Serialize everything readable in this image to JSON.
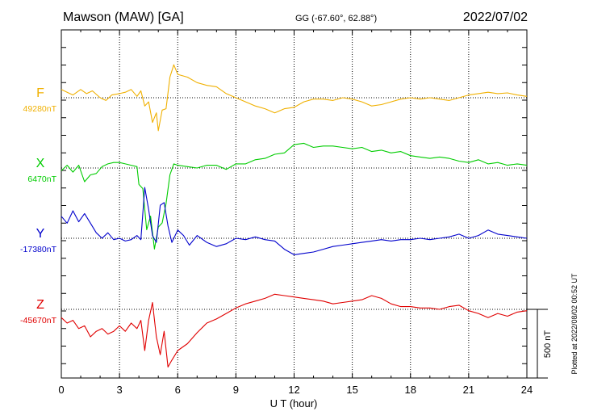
{
  "header": {
    "station": "Mawson (MAW)  [GA]",
    "coords": "GG (-67.60°,  62.88°)",
    "date": "2022/07/02"
  },
  "footer": {
    "plotted": "Plotted at 2022/08/02 00:52 UT"
  },
  "scale": {
    "label": "500 nT"
  },
  "chart_data": {
    "type": "line",
    "xlabel": "U T (hour)",
    "xlim": [
      0,
      24
    ],
    "x_ticks": [
      "0",
      "3",
      "6",
      "9",
      "12",
      "15",
      "18",
      "21",
      "24"
    ],
    "scale_bar_nT": 500,
    "series": [
      {
        "name": "F",
        "baseline_label": "49280nT",
        "color": "#f0b000",
        "points": [
          [
            0,
            60
          ],
          [
            0.3,
            40
          ],
          [
            0.6,
            20
          ],
          [
            1.0,
            60
          ],
          [
            1.3,
            30
          ],
          [
            1.6,
            50
          ],
          [
            2.0,
            0
          ],
          [
            2.3,
            -20
          ],
          [
            2.6,
            20
          ],
          [
            3.0,
            30
          ],
          [
            3.3,
            40
          ],
          [
            3.6,
            60
          ],
          [
            3.9,
            10
          ],
          [
            4.1,
            50
          ],
          [
            4.3,
            -60
          ],
          [
            4.5,
            -30
          ],
          [
            4.7,
            -180
          ],
          [
            4.9,
            -110
          ],
          [
            5.0,
            -240
          ],
          [
            5.2,
            -90
          ],
          [
            5.4,
            -80
          ],
          [
            5.6,
            150
          ],
          [
            5.8,
            240
          ],
          [
            6.0,
            170
          ],
          [
            6.5,
            150
          ],
          [
            7.0,
            110
          ],
          [
            7.5,
            90
          ],
          [
            8.0,
            80
          ],
          [
            8.5,
            30
          ],
          [
            9.0,
            0
          ],
          [
            9.5,
            -30
          ],
          [
            10.0,
            -60
          ],
          [
            10.5,
            -80
          ],
          [
            11.0,
            -110
          ],
          [
            11.5,
            -80
          ],
          [
            12.0,
            -70
          ],
          [
            12.5,
            -30
          ],
          [
            13.0,
            -10
          ],
          [
            13.5,
            -10
          ],
          [
            14.0,
            -20
          ],
          [
            14.5,
            0
          ],
          [
            15.0,
            -10
          ],
          [
            15.5,
            -30
          ],
          [
            16.0,
            -60
          ],
          [
            16.5,
            -50
          ],
          [
            17.0,
            -30
          ],
          [
            17.5,
            -10
          ],
          [
            18.0,
            0
          ],
          [
            18.5,
            -10
          ],
          [
            19.0,
            0
          ],
          [
            19.5,
            -10
          ],
          [
            20.0,
            -20
          ],
          [
            20.5,
            0
          ],
          [
            21.0,
            20
          ],
          [
            21.5,
            30
          ],
          [
            22.0,
            40
          ],
          [
            22.5,
            30
          ],
          [
            23.0,
            35
          ],
          [
            23.5,
            20
          ],
          [
            24.0,
            10
          ]
        ]
      },
      {
        "name": "X",
        "baseline_label": "6470nT",
        "color": "#00cc00",
        "points": [
          [
            0,
            -20
          ],
          [
            0.3,
            20
          ],
          [
            0.6,
            -30
          ],
          [
            0.9,
            20
          ],
          [
            1.2,
            -100
          ],
          [
            1.5,
            -50
          ],
          [
            1.8,
            -40
          ],
          [
            2.1,
            10
          ],
          [
            2.4,
            30
          ],
          [
            2.7,
            40
          ],
          [
            3.0,
            40
          ],
          [
            3.3,
            30
          ],
          [
            3.6,
            20
          ],
          [
            3.9,
            10
          ],
          [
            4.0,
            -120
          ],
          [
            4.2,
            -150
          ],
          [
            4.4,
            -450
          ],
          [
            4.6,
            -350
          ],
          [
            4.8,
            -590
          ],
          [
            5.0,
            -430
          ],
          [
            5.2,
            -400
          ],
          [
            5.4,
            -260
          ],
          [
            5.6,
            -50
          ],
          [
            5.8,
            30
          ],
          [
            6.0,
            20
          ],
          [
            6.5,
            10
          ],
          [
            7.0,
            0
          ],
          [
            7.5,
            20
          ],
          [
            8.0,
            20
          ],
          [
            8.5,
            -10
          ],
          [
            9.0,
            30
          ],
          [
            9.5,
            30
          ],
          [
            10.0,
            60
          ],
          [
            10.5,
            70
          ],
          [
            11.0,
            100
          ],
          [
            11.5,
            110
          ],
          [
            12.0,
            170
          ],
          [
            12.5,
            180
          ],
          [
            13.0,
            150
          ],
          [
            13.5,
            160
          ],
          [
            14.0,
            160
          ],
          [
            14.5,
            150
          ],
          [
            15.0,
            140
          ],
          [
            15.5,
            150
          ],
          [
            16.0,
            120
          ],
          [
            16.5,
            130
          ],
          [
            17.0,
            110
          ],
          [
            17.5,
            120
          ],
          [
            18.0,
            90
          ],
          [
            18.5,
            80
          ],
          [
            19.0,
            70
          ],
          [
            19.5,
            80
          ],
          [
            20.0,
            70
          ],
          [
            20.5,
            50
          ],
          [
            21.0,
            40
          ],
          [
            21.5,
            60
          ],
          [
            22.0,
            30
          ],
          [
            22.5,
            40
          ],
          [
            23.0,
            20
          ],
          [
            23.5,
            30
          ],
          [
            24.0,
            20
          ]
        ]
      },
      {
        "name": "Y",
        "baseline_label": "-17380nT",
        "color": "#0000cc",
        "points": [
          [
            0,
            160
          ],
          [
            0.3,
            110
          ],
          [
            0.6,
            200
          ],
          [
            0.9,
            120
          ],
          [
            1.2,
            180
          ],
          [
            1.5,
            110
          ],
          [
            1.8,
            40
          ],
          [
            2.1,
            0
          ],
          [
            2.4,
            40
          ],
          [
            2.7,
            -10
          ],
          [
            3.0,
            0
          ],
          [
            3.3,
            -20
          ],
          [
            3.6,
            -10
          ],
          [
            3.9,
            20
          ],
          [
            4.1,
            -10
          ],
          [
            4.3,
            370
          ],
          [
            4.5,
            210
          ],
          [
            4.7,
            20
          ],
          [
            4.9,
            -30
          ],
          [
            5.1,
            240
          ],
          [
            5.3,
            260
          ],
          [
            5.5,
            90
          ],
          [
            5.7,
            -30
          ],
          [
            6.0,
            60
          ],
          [
            6.3,
            20
          ],
          [
            6.6,
            -50
          ],
          [
            7.0,
            20
          ],
          [
            7.5,
            -30
          ],
          [
            8.0,
            -60
          ],
          [
            8.5,
            -40
          ],
          [
            9.0,
            0
          ],
          [
            9.5,
            -10
          ],
          [
            10.0,
            10
          ],
          [
            10.5,
            -10
          ],
          [
            11.0,
            -20
          ],
          [
            11.5,
            -80
          ],
          [
            12.0,
            -120
          ],
          [
            12.5,
            -110
          ],
          [
            13.0,
            -100
          ],
          [
            13.5,
            -80
          ],
          [
            14.0,
            -60
          ],
          [
            14.5,
            -50
          ],
          [
            15.0,
            -40
          ],
          [
            15.5,
            -30
          ],
          [
            16.0,
            -20
          ],
          [
            16.5,
            -10
          ],
          [
            17.0,
            -20
          ],
          [
            17.5,
            -10
          ],
          [
            18.0,
            -10
          ],
          [
            18.5,
            0
          ],
          [
            19.0,
            -10
          ],
          [
            19.5,
            0
          ],
          [
            20.0,
            10
          ],
          [
            20.5,
            30
          ],
          [
            21.0,
            0
          ],
          [
            21.5,
            20
          ],
          [
            22.0,
            60
          ],
          [
            22.5,
            30
          ],
          [
            23.0,
            20
          ],
          [
            23.5,
            10
          ],
          [
            24.0,
            0
          ]
        ]
      },
      {
        "name": "Z",
        "baseline_label": "-45670nT",
        "color": "#e00000",
        "points": [
          [
            0,
            -60
          ],
          [
            0.3,
            -100
          ],
          [
            0.6,
            -80
          ],
          [
            0.9,
            -140
          ],
          [
            1.2,
            -120
          ],
          [
            1.5,
            -200
          ],
          [
            1.8,
            -160
          ],
          [
            2.1,
            -140
          ],
          [
            2.4,
            -180
          ],
          [
            2.7,
            -160
          ],
          [
            3.0,
            -120
          ],
          [
            3.3,
            -160
          ],
          [
            3.6,
            -100
          ],
          [
            3.9,
            -140
          ],
          [
            4.1,
            -80
          ],
          [
            4.3,
            -300
          ],
          [
            4.5,
            -80
          ],
          [
            4.7,
            50
          ],
          [
            4.9,
            -200
          ],
          [
            5.1,
            -330
          ],
          [
            5.3,
            -160
          ],
          [
            5.5,
            -420
          ],
          [
            5.7,
            -370
          ],
          [
            6.0,
            -300
          ],
          [
            6.5,
            -250
          ],
          [
            7.0,
            -170
          ],
          [
            7.5,
            -100
          ],
          [
            8.0,
            -70
          ],
          [
            8.5,
            -30
          ],
          [
            9.0,
            10
          ],
          [
            9.5,
            40
          ],
          [
            10.0,
            60
          ],
          [
            10.5,
            80
          ],
          [
            11.0,
            110
          ],
          [
            11.5,
            100
          ],
          [
            12.0,
            90
          ],
          [
            12.5,
            80
          ],
          [
            13.0,
            70
          ],
          [
            13.5,
            60
          ],
          [
            14.0,
            40
          ],
          [
            14.5,
            50
          ],
          [
            15.0,
            60
          ],
          [
            15.5,
            70
          ],
          [
            16.0,
            100
          ],
          [
            16.5,
            80
          ],
          [
            17.0,
            40
          ],
          [
            17.5,
            20
          ],
          [
            18.0,
            20
          ],
          [
            18.5,
            10
          ],
          [
            19.0,
            10
          ],
          [
            19.5,
            0
          ],
          [
            20.0,
            20
          ],
          [
            20.5,
            30
          ],
          [
            21.0,
            -10
          ],
          [
            21.5,
            -30
          ],
          [
            22.0,
            -60
          ],
          [
            22.5,
            -30
          ],
          [
            23.0,
            -50
          ],
          [
            23.5,
            -20
          ],
          [
            24.0,
            -10
          ]
        ]
      }
    ]
  }
}
